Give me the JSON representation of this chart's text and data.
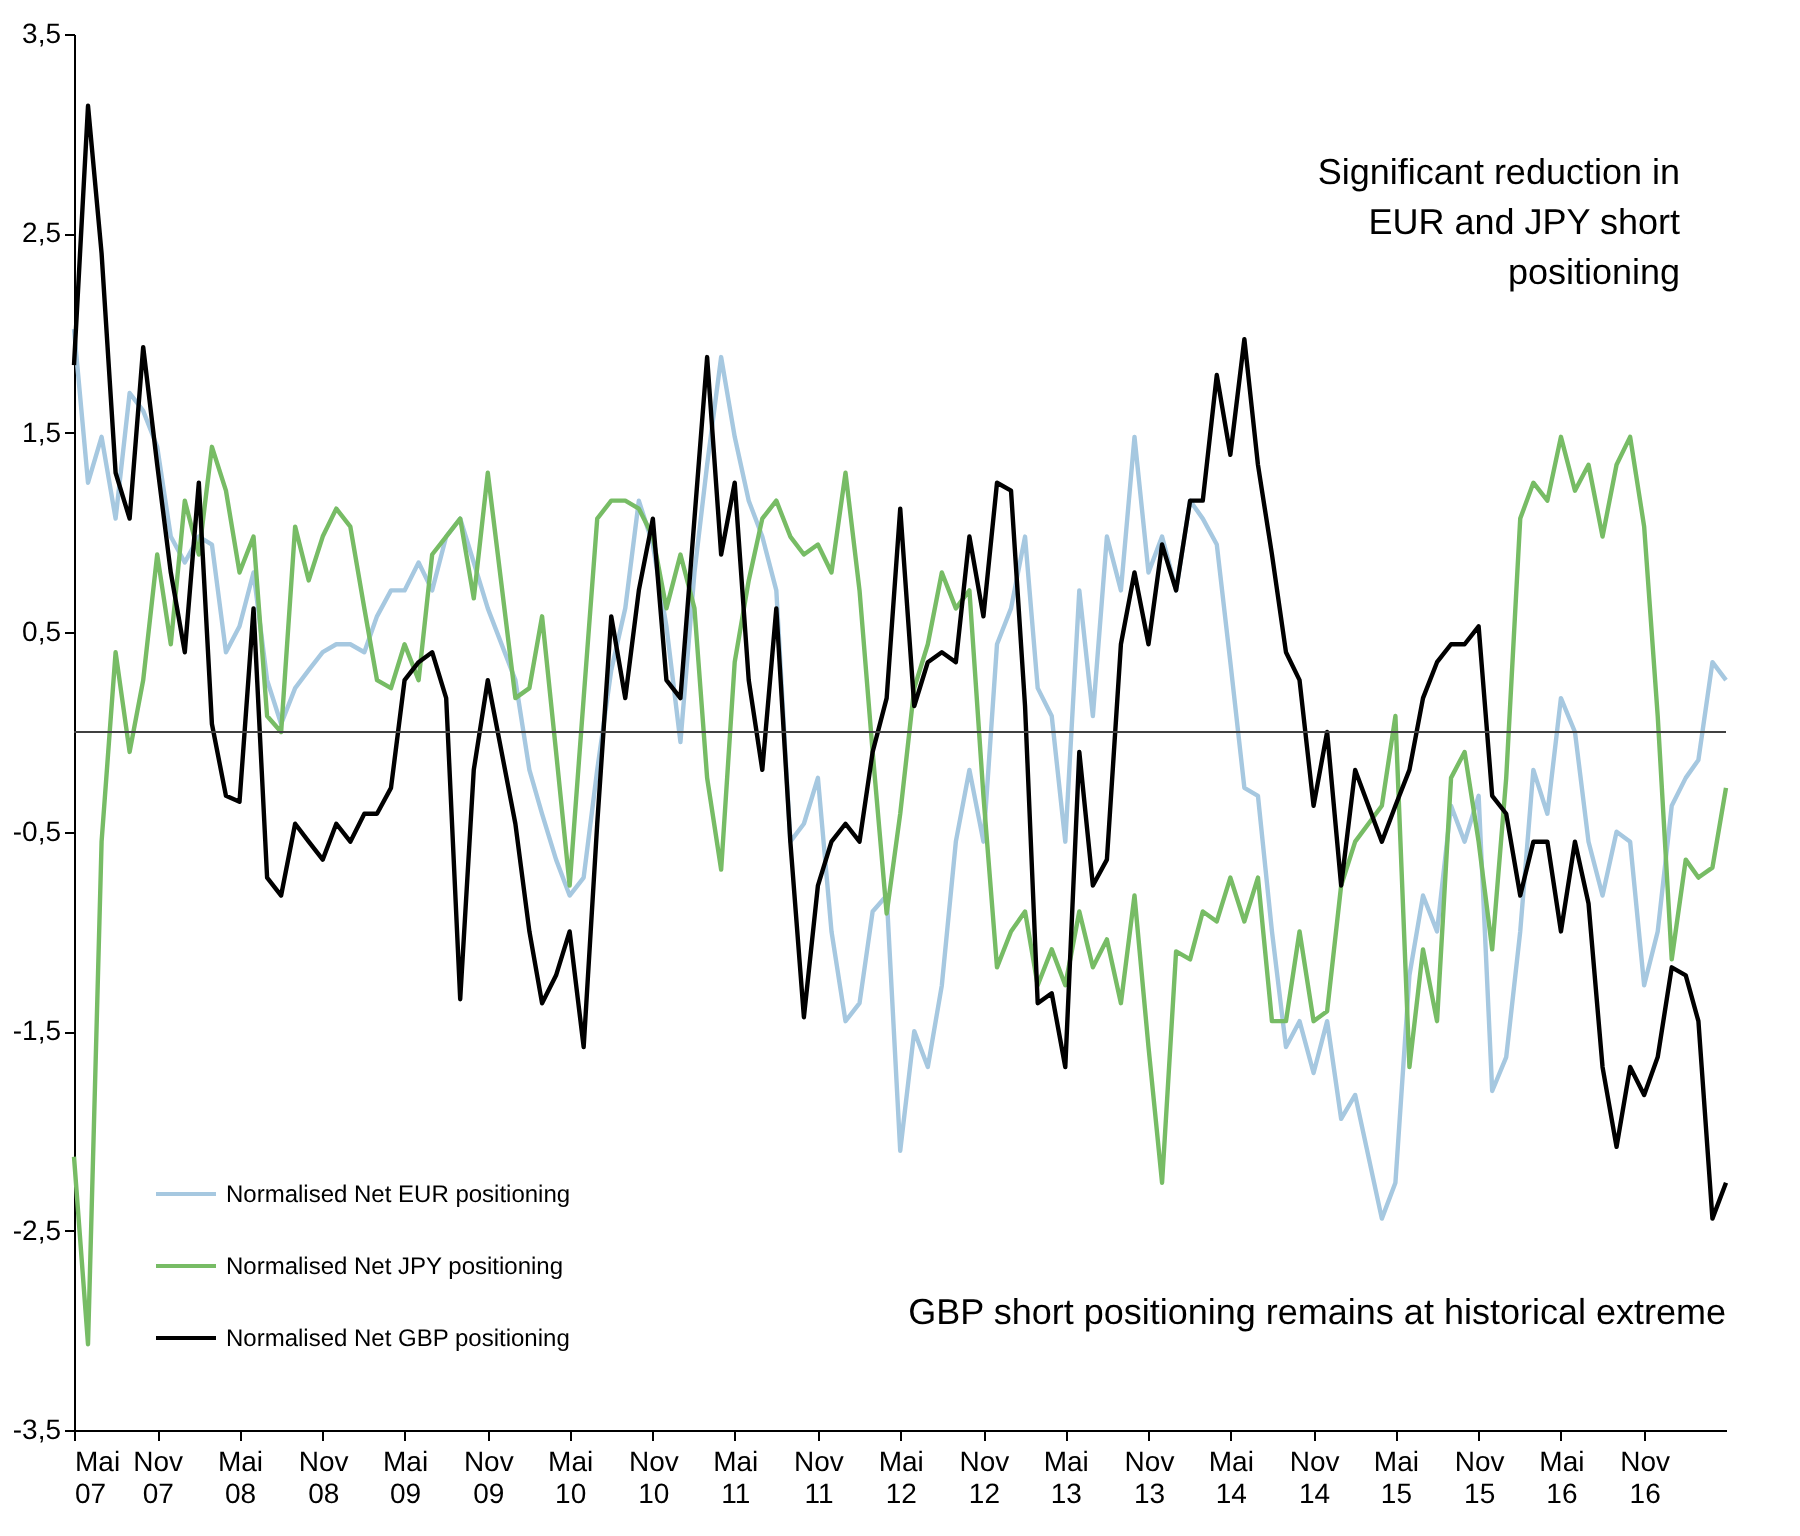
{
  "chart_data": {
    "type": "line",
    "annotations": [
      "Significant reduction in\nEUR and JPY short\npositioning",
      "GBP short positioning remains at historical extreme"
    ],
    "x": [
      "2007-05",
      "2007-06",
      "2007-07",
      "2007-08",
      "2007-09",
      "2007-10",
      "2007-11",
      "2007-12",
      "2008-01",
      "2008-02",
      "2008-03",
      "2008-04",
      "2008-05",
      "2008-06",
      "2008-07",
      "2008-08",
      "2008-09",
      "2008-10",
      "2008-11",
      "2008-12",
      "2009-01",
      "2009-02",
      "2009-03",
      "2009-04",
      "2009-05",
      "2009-06",
      "2009-07",
      "2009-08",
      "2009-09",
      "2009-10",
      "2009-11",
      "2010-01",
      "2010-02",
      "2010-03",
      "2010-04",
      "2010-05",
      "2010-06",
      "2010-07",
      "2010-08",
      "2010-09",
      "2010-10",
      "2010-11",
      "2010-12",
      "2011-01",
      "2011-02",
      "2011-03",
      "2011-04",
      "2011-05",
      "2011-06",
      "2011-07",
      "2011-08",
      "2011-09",
      "2011-10",
      "2011-11",
      "2011-12",
      "2012-01",
      "2012-02",
      "2012-03",
      "2012-04",
      "2012-05",
      "2012-06",
      "2012-07",
      "2012-08",
      "2012-09",
      "2012-10",
      "2012-11",
      "2012-12",
      "2013-01",
      "2013-02",
      "2013-03",
      "2013-04",
      "2013-05",
      "2013-06",
      "2013-07",
      "2013-08",
      "2013-09",
      "2013-10",
      "2013-11",
      "2013-12",
      "2014-01",
      "2014-02",
      "2014-03",
      "2014-04",
      "2014-05",
      "2014-06",
      "2014-07",
      "2014-08",
      "2014-09",
      "2014-10",
      "2014-11",
      "2014-12",
      "2015-01",
      "2015-02",
      "2015-04",
      "2015-05",
      "2015-06",
      "2015-07",
      "2015-08",
      "2015-09",
      "2015-10",
      "2015-11",
      "2015-12",
      "2016-01",
      "2016-02",
      "2016-03",
      "2016-04",
      "2016-05",
      "2016-06",
      "2016-07",
      "2016-08",
      "2016-09",
      "2016-10",
      "2016-11",
      "2016-12",
      "2017-01",
      "2017-02",
      "2017-03",
      "2017-04",
      "2017-05"
    ],
    "series": [
      {
        "name": "Normalised Net EUR positioning",
        "color": "#a6c8e0",
        "values": [
          2.02,
          1.25,
          1.48,
          1.07,
          1.7,
          1.61,
          1.43,
          0.98,
          0.85,
          0.98,
          0.94,
          0.4,
          0.53,
          0.8,
          0.26,
          0.04,
          0.22,
          0.31,
          0.4,
          0.44,
          0.44,
          0.4,
          0.58,
          0.71,
          0.71,
          0.85,
          0.71,
          0.98,
          1.07,
          0.85,
          0.62,
          0.26,
          -0.19,
          -0.41,
          -0.64,
          -0.82,
          -0.73,
          -0.19,
          0.31,
          0.62,
          1.16,
          0.94,
          0.53,
          -0.05,
          0.8,
          1.34,
          1.88,
          1.48,
          1.16,
          0.98,
          0.71,
          -0.55,
          -0.46,
          -0.23,
          -1.0,
          -1.45,
          -1.36,
          -0.9,
          -0.82,
          -2.1,
          -1.5,
          -1.68,
          -1.27,
          -0.55,
          -0.19,
          -0.55,
          0.44,
          0.62,
          0.98,
          0.22,
          0.08,
          -0.55,
          0.71,
          0.08,
          0.98,
          0.71,
          1.48,
          0.8,
          0.98,
          0.71,
          1.16,
          1.07,
          0.94,
          0.35,
          -0.28,
          -0.32,
          -1.0,
          -1.58,
          -1.45,
          -1.71,
          -1.45,
          -1.94,
          -1.82,
          -2.44,
          -2.26,
          -1.22,
          -0.82,
          -1.0,
          -0.37,
          -0.55,
          -0.32,
          -1.8,
          -1.63,
          -1.0,
          -0.19,
          -0.41,
          0.17,
          0,
          -0.55,
          -0.82,
          -0.5,
          -0.55,
          -1.27,
          -1.0,
          -0.37,
          -0.23,
          -0.14,
          0.35,
          0.26
        ]
      },
      {
        "name": "Normalised Net JPY positioning",
        "color": "#77bc65",
        "values": [
          -2.13,
          -3.07,
          -0.55,
          0.4,
          -0.1,
          0.26,
          0.89,
          0.44,
          1.16,
          0.89,
          1.43,
          1.21,
          0.8,
          0.98,
          0.08,
          0,
          1.03,
          0.76,
          0.98,
          1.12,
          1.03,
          0.62,
          0.26,
          0.22,
          0.44,
          0.26,
          0.89,
          0.98,
          1.07,
          0.67,
          1.3,
          0.17,
          0.22,
          0.58,
          -0.1,
          -0.77,
          0.17,
          1.07,
          1.16,
          1.16,
          1.12,
          0.98,
          0.62,
          0.89,
          0.62,
          -0.23,
          -0.69,
          0.35,
          0.76,
          1.07,
          1.16,
          0.98,
          0.89,
          0.94,
          0.8,
          1.3,
          0.71,
          -0.1,
          -0.91,
          -0.41,
          0.22,
          0.44,
          0.8,
          0.62,
          0.71,
          -0.32,
          -1.18,
          -1.0,
          -0.9,
          -1.27,
          -1.09,
          -1.27,
          -0.9,
          -1.18,
          -1.04,
          -1.36,
          -0.82,
          -1.58,
          -2.26,
          -1.1,
          -1.14,
          -0.9,
          -0.95,
          -0.73,
          -0.95,
          -0.73,
          -1.45,
          -1.45,
          -1.0,
          -1.45,
          -1.4,
          -0.77,
          -0.55,
          -0.37,
          0.08,
          -1.68,
          -1.09,
          -1.45,
          -0.23,
          -0.1,
          -0.55,
          -1.09,
          -0.23,
          1.07,
          1.25,
          1.16,
          1.48,
          1.21,
          1.34,
          0.98,
          1.34,
          1.48,
          1.03,
          0.08,
          -1.14,
          -0.64,
          -0.73,
          -0.68,
          -0.28
        ]
      },
      {
        "name": "Normalised Net GBP positioning",
        "color": "#000000",
        "values": [
          1.84,
          3.14,
          2.4,
          1.3,
          1.07,
          1.93,
          1.34,
          0.8,
          0.4,
          1.25,
          0.04,
          -0.32,
          -0.35,
          0.62,
          -0.73,
          -0.82,
          -0.46,
          -0.55,
          -0.64,
          -0.46,
          -0.55,
          -0.41,
          -0.41,
          -0.28,
          0.26,
          0.35,
          0.4,
          0.17,
          -1.34,
          -0.19,
          0.26,
          -0.46,
          -1.0,
          -1.36,
          -1.22,
          -1.0,
          -1.58,
          -0.46,
          0.58,
          0.17,
          0.71,
          1.07,
          0.26,
          0.17,
          1.07,
          1.88,
          0.89,
          1.25,
          0.26,
          -0.19,
          0.62,
          -0.55,
          -1.43,
          -0.77,
          -0.55,
          -0.46,
          -0.55,
          -0.1,
          0.17,
          1.12,
          0.13,
          0.35,
          0.4,
          0.35,
          0.98,
          0.58,
          1.25,
          1.21,
          0.13,
          -1.36,
          -1.31,
          -1.68,
          -0.1,
          -0.77,
          -0.64,
          0.44,
          0.8,
          0.44,
          0.94,
          0.71,
          1.16,
          1.16,
          1.79,
          1.39,
          1.97,
          1.34,
          0.89,
          0.4,
          0.26,
          -0.37,
          0,
          -0.77,
          -0.19,
          -0.55,
          -0.37,
          -0.19,
          0.17,
          0.35,
          0.44,
          0.44,
          0.53,
          -0.32,
          -0.41,
          -0.82,
          -0.55,
          -0.55,
          -1.0,
          -0.55,
          -0.86,
          -1.68,
          -2.08,
          -1.68,
          -1.82,
          -1.63,
          -1.18,
          -1.22,
          -1.45,
          -2.44,
          -2.26
        ]
      }
    ],
    "xlim": [
      "2007-05",
      "2017-05"
    ],
    "xticks": [
      {
        "value": "2007-05",
        "label": "Mai 07"
      },
      {
        "value": "2007-11",
        "label": "Nov 07"
      },
      {
        "value": "2008-05",
        "label": "Mai 08"
      },
      {
        "value": "2008-11",
        "label": "Nov 08"
      },
      {
        "value": "2009-05",
        "label": "Mai 09"
      },
      {
        "value": "2009-11",
        "label": "Nov 09"
      },
      {
        "value": "2010-05",
        "label": "Mai 10"
      },
      {
        "value": "2010-11",
        "label": "Nov 10"
      },
      {
        "value": "2011-05",
        "label": "Mai 11"
      },
      {
        "value": "2011-11",
        "label": "Nov 11"
      },
      {
        "value": "2012-05",
        "label": "Mai 12"
      },
      {
        "value": "2012-11",
        "label": "Nov 12"
      },
      {
        "value": "2013-05",
        "label": "Mai 13"
      },
      {
        "value": "2013-11",
        "label": "Nov 13"
      },
      {
        "value": "2014-05",
        "label": "Mai 14"
      },
      {
        "value": "2014-11",
        "label": "Nov 14"
      },
      {
        "value": "2015-05",
        "label": "Mai 15"
      },
      {
        "value": "2015-11",
        "label": "Nov 15"
      },
      {
        "value": "2016-05",
        "label": "Mai 16"
      },
      {
        "value": "2016-11",
        "label": "Nov 16"
      }
    ],
    "ylim": [
      -3.5,
      3.5
    ],
    "yticks": [
      {
        "value": -3.5,
        "label": "-3,5"
      },
      {
        "value": -2.5,
        "label": "-2,5"
      },
      {
        "value": -1.5,
        "label": "-1,5"
      },
      {
        "value": -0.5,
        "label": "-0,5"
      },
      {
        "value": 0.5,
        "label": "0,5"
      },
      {
        "value": 1.5,
        "label": "1,5"
      },
      {
        "value": 2.5,
        "label": "2,5"
      },
      {
        "value": 3.5,
        "label": "3,5"
      }
    ],
    "ref_lines": [
      {
        "axis": "y",
        "value": 0,
        "color": "#404040"
      }
    ],
    "legend": "bottom left",
    "grid": false,
    "line_style": "solid",
    "marker": "none"
  }
}
